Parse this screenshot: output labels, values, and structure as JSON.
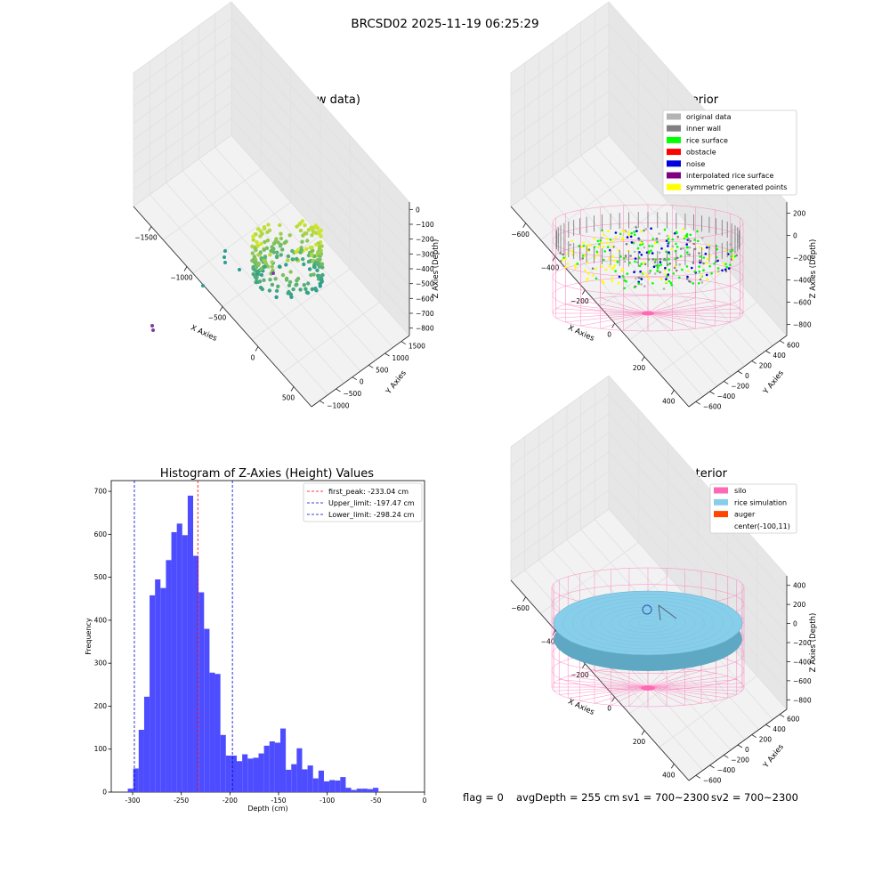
{
  "figure": {
    "suptitle": "BRCSD02 2025-11-19 06:25:29",
    "footer": {
      "flag": "flag = 0",
      "avg_depth": "avgDepth = 255 cm",
      "sv1": "sv1 = 700~2300",
      "sv2": "sv2 = 700~2300"
    }
  },
  "colors": {
    "raw_low": "#2a9d8f",
    "raw_high": "#d4e72c",
    "raw_outlier": "#7b3f99",
    "original": "#b3b3b3",
    "inner_wall": "#808080",
    "rice_surface": "#00ff00",
    "obstacle": "#ff0000",
    "noise": "#0000dd",
    "interpolated": "#800080",
    "symmetric": "#ffff00",
    "silo": "#ff69b4",
    "rice_sim": "#87ceeb",
    "auger": "#ff4500",
    "hist_bar": "#4d4dff",
    "grid": "#e0e0e0",
    "pane": "#f2f2f2"
  },
  "chart_data": [
    {
      "type": "scatter3d",
      "title": "3D Plot of Silo Interior(row data)",
      "xlabel": "X Axies",
      "ylabel": "Y Axies",
      "zlabel": "Z Axies (Depth)",
      "x_ticks": [
        "−1500",
        "−1000",
        "−500",
        "0",
        "500"
      ],
      "y_ticks": [
        "−1000",
        "−500",
        "0",
        "500",
        "1000",
        "1500"
      ],
      "z_ticks": [
        "0",
        "−100",
        "−200",
        "−300",
        "−400",
        "−500",
        "−600",
        "−700",
        "−800"
      ],
      "xlim": [
        -1800,
        600
      ],
      "ylim": [
        -1000,
        1600
      ],
      "zlim": [
        -800,
        0
      ],
      "description": "ring of points around the silo wall plus a few outliers"
    },
    {
      "type": "scatter3d",
      "title": "3D classify of Silo Interior",
      "xlabel": "X Axies",
      "ylabel": "Y Axies",
      "zlabel": "Z Axies (Depth)",
      "x_ticks": [
        "−600",
        "−400",
        "−200",
        "0",
        "200",
        "400"
      ],
      "y_ticks": [
        "−600",
        "−400",
        "−200",
        "0",
        "200",
        "400",
        "600"
      ],
      "z_ticks": [
        "200",
        "0",
        "−200",
        "−400",
        "−600",
        "−800"
      ],
      "z_top_partial": "00",
      "legend": [
        {
          "label": "original data",
          "color_key": "original"
        },
        {
          "label": "inner wall",
          "color_key": "inner_wall"
        },
        {
          "label": "rice surface",
          "color_key": "rice_surface"
        },
        {
          "label": "obstacle",
          "color_key": "obstacle"
        },
        {
          "label": "noise",
          "color_key": "noise"
        },
        {
          "label": "interpolated rice surface",
          "color_key": "interpolated"
        },
        {
          "label": "symmetric generated points",
          "color_key": "symmetric"
        }
      ],
      "legend_position": "top-right"
    },
    {
      "type": "bar",
      "title": "Histogram of Z-Axies (Height) Values",
      "xlabel": "Depth (cm)",
      "ylabel": "Frequency",
      "xlim": [
        -322,
        0
      ],
      "ylim": [
        0,
        725
      ],
      "x_ticks": [
        -300,
        -250,
        -200,
        -150,
        -100,
        -50,
        0
      ],
      "y_ticks": [
        0,
        100,
        200,
        300,
        400,
        500,
        600,
        700
      ],
      "bin_start": -305,
      "bin_width": 5.6,
      "values": [
        8,
        55,
        145,
        222,
        458,
        495,
        475,
        540,
        605,
        625,
        598,
        690,
        550,
        465,
        380,
        278,
        275,
        133,
        85,
        85,
        72,
        88,
        78,
        80,
        90,
        108,
        118,
        115,
        148,
        52,
        65,
        102,
        53,
        62,
        32,
        50,
        25,
        28,
        27,
        35,
        10,
        5,
        8,
        8,
        7,
        10
      ],
      "lines": [
        {
          "label": "first_peak: -233.04 cm",
          "x": -233.04,
          "color": "#ff0000"
        },
        {
          "label": "Upper_limit: -197.47 cm",
          "x": -197.47,
          "color": "#0000cc"
        },
        {
          "label": "Lower_limit: -298.24 cm",
          "x": -298.24,
          "color": "#0000cc"
        }
      ],
      "legend_position": "top-right"
    },
    {
      "type": "surface3d",
      "title": "3D simulation of Silo Interior",
      "xlabel": "X Axies",
      "ylabel": "Y Axies",
      "zlabel": "Z Axies (Depth)",
      "x_ticks": [
        "−600",
        "−400",
        "−200",
        "0",
        "200",
        "400"
      ],
      "y_ticks": [
        "−600",
        "−400",
        "−200",
        "0",
        "200",
        "400",
        "600"
      ],
      "z_ticks": [
        "400",
        "200",
        "0",
        "−200",
        "−400",
        "−600",
        "−800"
      ],
      "legend": [
        {
          "label": "silo",
          "color_key": "silo"
        },
        {
          "label": "rice simulation",
          "color_key": "rice_sim"
        },
        {
          "label": "auger",
          "color_key": "auger"
        },
        {
          "label": "center(-100,11)",
          "color_key": ""
        }
      ],
      "legend_position": "top-right"
    }
  ]
}
